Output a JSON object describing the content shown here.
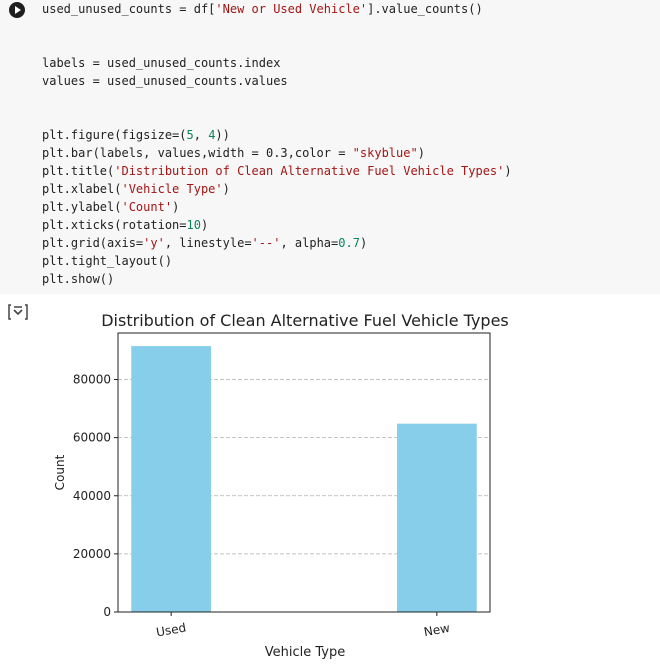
{
  "code_lines": [
    "used_unused_counts = df['New or Used Vehicle'].value_counts()",
    "",
    "",
    "labels = used_unused_counts.index",
    "values = used_unused_counts.values",
    "",
    "",
    "plt.figure(figsize=(5, 4))",
    "plt.bar(labels, values,width = 0.3,color = \"skyblue\")",
    "plt.title('Distribution of Clean Alternative Fuel Vehicle Types')",
    "plt.xlabel('Vehicle Type')",
    "plt.ylabel('Count')",
    "plt.xticks(rotation=10)",
    "plt.grid(axis='y', linestyle='--', alpha=0.7)",
    "plt.tight_layout()",
    "plt.show()"
  ],
  "icons": {
    "run": "play-icon",
    "output": "output-toggle-icon"
  },
  "colors": {
    "bar": "#87ceeb",
    "code_background": "#f7f7f7"
  },
  "chart_data": {
    "type": "bar",
    "title": "Distribution of Clean Alternative Fuel Vehicle Types",
    "xlabel": "Vehicle Type",
    "ylabel": "Count",
    "categories": [
      "Used",
      "New"
    ],
    "values": [
      91500,
      64800
    ],
    "ylim": [
      0,
      96000
    ],
    "yticks": [
      0,
      20000,
      40000,
      60000,
      80000
    ],
    "grid": "y, dashed",
    "xtick_rotation": 10
  }
}
